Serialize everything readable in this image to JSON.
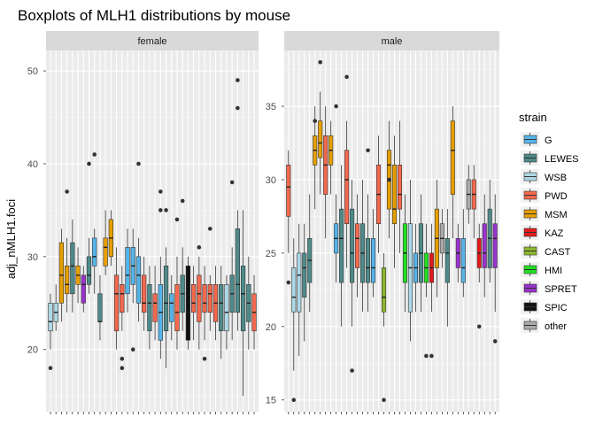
{
  "chart_data": {
    "type": "boxplot",
    "title": "Boxplots of MLH1 distributions by mouse",
    "ylabel": "adj_nMLH1.foci",
    "xlabel": "",
    "grid": true,
    "legend_position": "right",
    "legend": {
      "title": "strain",
      "items": [
        {
          "name": "G",
          "color": "#56B4E9"
        },
        {
          "name": "LEWES",
          "color": "#4E8A89"
        },
        {
          "name": "WSB",
          "color": "#ADD8E6"
        },
        {
          "name": "PWD",
          "color": "#F4694E"
        },
        {
          "name": "MSM",
          "color": "#E69F00"
        },
        {
          "name": "KAZ",
          "color": "#E41A1C"
        },
        {
          "name": "CAST",
          "color": "#8DB72E"
        },
        {
          "name": "HMI",
          "color": "#22E022"
        },
        {
          "name": "SPRET",
          "color": "#9933CC"
        },
        {
          "name": "SPIC",
          "color": "#111111"
        },
        {
          "name": "other",
          "color": "#AAAAAA"
        }
      ]
    },
    "panels": [
      {
        "label": "female",
        "ylim": [
          13.3,
          52.2
        ],
        "yticks": [
          20,
          30,
          40,
          50
        ],
        "boxes": [
          {
            "strain": "WSB",
            "min": 20,
            "q1": 22,
            "median": 23,
            "q3": 25,
            "max": 26,
            "outliers": [
              18
            ]
          },
          {
            "strain": "WSB",
            "min": 22,
            "q1": 23,
            "median": 24,
            "q3": 25,
            "max": 27,
            "outliers": []
          },
          {
            "strain": "MSM",
            "min": 23,
            "q1": 25,
            "median": 28,
            "q3": 31.5,
            "max": 33,
            "outliers": []
          },
          {
            "strain": "MSM",
            "min": 24,
            "q1": 26,
            "median": 27,
            "q3": 29,
            "max": 32,
            "outliers": [
              37
            ]
          },
          {
            "strain": "LEWES",
            "min": 24,
            "q1": 26,
            "median": 29,
            "q3": 31.5,
            "max": 34,
            "outliers": []
          },
          {
            "strain": "MSM",
            "min": 25,
            "q1": 27,
            "median": 28,
            "q3": 29,
            "max": 31,
            "outliers": []
          },
          {
            "strain": "SPRET",
            "min": 24,
            "q1": 25,
            "median": 27,
            "q3": 28,
            "max": 29,
            "outliers": []
          },
          {
            "strain": "LEWES",
            "min": 26,
            "q1": 27,
            "median": 28,
            "q3": 30,
            "max": 32,
            "outliers": [
              40
            ]
          },
          {
            "strain": "G",
            "min": 26,
            "q1": 29,
            "median": 30,
            "q3": 32,
            "max": 33,
            "outliers": [
              41
            ]
          },
          {
            "strain": "LEWES",
            "min": 21,
            "q1": 23,
            "median": 23,
            "q3": 26,
            "max": 28,
            "outliers": []
          },
          {
            "strain": "MSM",
            "min": 28,
            "q1": 29,
            "median": 31,
            "q3": 32,
            "max": 35,
            "outliers": []
          },
          {
            "strain": "MSM",
            "min": 29,
            "q1": 30,
            "median": 32,
            "q3": 34,
            "max": 35,
            "outliers": []
          },
          {
            "strain": "PWD",
            "min": 20,
            "q1": 22,
            "median": 26,
            "q3": 28,
            "max": 31,
            "outliers": []
          },
          {
            "strain": "PWD",
            "min": 22,
            "q1": 24,
            "median": 26,
            "q3": 27,
            "max": 29,
            "outliers": [
              18,
              19
            ]
          },
          {
            "strain": "G",
            "min": 24,
            "q1": 26,
            "median": 28,
            "q3": 31,
            "max": 33,
            "outliers": []
          },
          {
            "strain": "G",
            "min": 25,
            "q1": 27,
            "median": 29,
            "q3": 31,
            "max": 33,
            "outliers": [
              20
            ]
          },
          {
            "strain": "G",
            "min": 23,
            "q1": 25,
            "median": 28,
            "q3": 30,
            "max": 32,
            "outliers": [
              40
            ]
          },
          {
            "strain": "PWD",
            "min": 22,
            "q1": 24,
            "median": 25,
            "q3": 28,
            "max": 30,
            "outliers": []
          },
          {
            "strain": "LEWES",
            "min": 20,
            "q1": 22,
            "median": 25,
            "q3": 27,
            "max": 29,
            "outliers": []
          },
          {
            "strain": "PWD",
            "min": 21,
            "q1": 23,
            "median": 25,
            "q3": 26,
            "max": 29,
            "outliers": []
          },
          {
            "strain": "G",
            "min": 19,
            "q1": 21,
            "median": 24,
            "q3": 27,
            "max": 30,
            "outliers": [
              37,
              35
            ]
          },
          {
            "strain": "LEWES",
            "min": 18,
            "q1": 22,
            "median": 25,
            "q3": 29,
            "max": 31,
            "outliers": [
              35
            ]
          },
          {
            "strain": "G",
            "min": 21,
            "q1": 23,
            "median": 25,
            "q3": 26,
            "max": 28,
            "outliers": []
          },
          {
            "strain": "PWD",
            "min": 20,
            "q1": 22,
            "median": 24,
            "q3": 27,
            "max": 30,
            "outliers": [
              34
            ]
          },
          {
            "strain": "LEWES",
            "min": 22,
            "q1": 24,
            "median": 26,
            "q3": 28,
            "max": 31,
            "outliers": [
              36
            ]
          },
          {
            "strain": "SPIC",
            "min": 20,
            "q1": 21,
            "median": 24,
            "q3": 29,
            "max": 30,
            "outliers": []
          },
          {
            "strain": "PWD",
            "min": 21,
            "q1": 24,
            "median": 25,
            "q3": 27,
            "max": 29,
            "outliers": []
          },
          {
            "strain": "PWD",
            "min": 20,
            "q1": 23,
            "median": 26,
            "q3": 28,
            "max": 30,
            "outliers": [
              31
            ]
          },
          {
            "strain": "PWD",
            "min": 21,
            "q1": 24,
            "median": 25,
            "q3": 27,
            "max": 29,
            "outliers": [
              19
            ]
          },
          {
            "strain": "PWD",
            "min": 22,
            "q1": 24,
            "median": 26,
            "q3": 27,
            "max": 28,
            "outliers": [
              33
            ]
          },
          {
            "strain": "PWD",
            "min": 21,
            "q1": 23,
            "median": 25,
            "q3": 27,
            "max": 29,
            "outliers": []
          },
          {
            "strain": "LEWES",
            "min": 19,
            "q1": 22,
            "median": 25,
            "q3": 27,
            "max": 29,
            "outliers": []
          },
          {
            "strain": "WSB",
            "min": 20,
            "q1": 22,
            "median": 24,
            "q3": 27,
            "max": 28,
            "outliers": []
          },
          {
            "strain": "LEWES",
            "min": 21,
            "q1": 24,
            "median": 26,
            "q3": 28,
            "max": 31,
            "outliers": [
              38
            ]
          },
          {
            "strain": "LEWES",
            "min": 22,
            "q1": 24,
            "median": 27,
            "q3": 33,
            "max": 35,
            "outliers": [
              49,
              46
            ]
          },
          {
            "strain": "LEWES",
            "min": 15,
            "q1": 22,
            "median": 26,
            "q3": 29,
            "max": 35,
            "outliers": []
          },
          {
            "strain": "LEWES",
            "min": 20,
            "q1": 23,
            "median": 25,
            "q3": 27,
            "max": 30,
            "outliers": []
          },
          {
            "strain": "PWD",
            "min": 20,
            "q1": 22,
            "median": 24,
            "q3": 26,
            "max": 28,
            "outliers": []
          }
        ]
      },
      {
        "label": "male",
        "ylim": [
          14.2,
          38.8
        ],
        "yticks": [
          15,
          20,
          25,
          30,
          35
        ],
        "boxes": [
          {
            "strain": "PWD",
            "min": 25,
            "q1": 27.5,
            "median": 29.5,
            "q3": 31,
            "max": 32,
            "outliers": [
              23
            ]
          },
          {
            "strain": "WSB",
            "min": 17,
            "q1": 21,
            "median": 22,
            "q3": 24,
            "max": 26,
            "outliers": [
              15
            ]
          },
          {
            "strain": "WSB",
            "min": 18,
            "q1": 21,
            "median": 23.5,
            "q3": 25,
            "max": 27,
            "outliers": []
          },
          {
            "strain": "LEWES",
            "min": 19,
            "q1": 22,
            "median": 24,
            "q3": 25,
            "max": 27,
            "outliers": []
          },
          {
            "strain": "LEWES",
            "min": 21,
            "q1": 23,
            "median": 24.5,
            "q3": 26,
            "max": 29,
            "outliers": []
          },
          {
            "strain": "MSM",
            "min": 28,
            "q1": 31,
            "median": 32,
            "q3": 33,
            "max": 35,
            "outliers": [
              34
            ]
          },
          {
            "strain": "MSM",
            "min": 29,
            "q1": 31.5,
            "median": 32.5,
            "q3": 34,
            "max": 36,
            "outliers": [
              38
            ]
          },
          {
            "strain": "PWD",
            "min": 26,
            "q1": 29,
            "median": 31,
            "q3": 33,
            "max": 35,
            "outliers": []
          },
          {
            "strain": "MSM",
            "min": 29,
            "q1": 31,
            "median": 32,
            "q3": 33,
            "max": 34,
            "outliers": []
          },
          {
            "strain": "G",
            "min": 23,
            "q1": 25,
            "median": 26,
            "q3": 27,
            "max": 29,
            "outliers": [
              35
            ]
          },
          {
            "strain": "LEWES",
            "min": 20,
            "q1": 23,
            "median": 26,
            "q3": 28,
            "max": 31,
            "outliers": []
          },
          {
            "strain": "PWD",
            "min": 24,
            "q1": 27,
            "median": 30,
            "q3": 32,
            "max": 34,
            "outliers": [
              37
            ]
          },
          {
            "strain": "LEWES",
            "min": 20,
            "q1": 23,
            "median": 25,
            "q3": 28,
            "max": 30,
            "outliers": [
              17
            ]
          },
          {
            "strain": "PWD",
            "min": 22,
            "q1": 24,
            "median": 26,
            "q3": 27,
            "max": 29,
            "outliers": []
          },
          {
            "strain": "LEWES",
            "min": 21,
            "q1": 23,
            "median": 25,
            "q3": 27,
            "max": 30,
            "outliers": []
          },
          {
            "strain": "LEWES",
            "min": 21,
            "q1": 23,
            "median": 24,
            "q3": 26,
            "max": 29,
            "outliers": [
              32
            ]
          },
          {
            "strain": "G",
            "min": 22,
            "q1": 23,
            "median": 24,
            "q3": 26,
            "max": 28,
            "outliers": []
          },
          {
            "strain": "PWD",
            "min": 25,
            "q1": 27,
            "median": 29,
            "q3": 31,
            "max": 33,
            "outliers": []
          },
          {
            "strain": "CAST",
            "min": 20,
            "q1": 21,
            "median": 22,
            "q3": 24,
            "max": 25,
            "outliers": [
              15
            ]
          },
          {
            "strain": "MSM",
            "min": 26,
            "q1": 28,
            "median": 31,
            "q3": 32,
            "max": 34,
            "outliers": [
              30
            ]
          },
          {
            "strain": "MSM",
            "min": 24,
            "q1": 27,
            "median": 28,
            "q3": 31,
            "max": 33,
            "outliers": []
          },
          {
            "strain": "PWD",
            "min": 25,
            "q1": 28,
            "median": 29,
            "q3": 31,
            "max": 34,
            "outliers": []
          },
          {
            "strain": "HMI",
            "min": 21,
            "q1": 23,
            "median": 25,
            "q3": 27,
            "max": 29,
            "outliers": []
          },
          {
            "strain": "WSB",
            "min": 19,
            "q1": 21,
            "median": 24,
            "q3": 27,
            "max": 30,
            "outliers": []
          },
          {
            "strain": "G",
            "min": 21,
            "q1": 23,
            "median": 24,
            "q3": 25,
            "max": 27,
            "outliers": []
          },
          {
            "strain": "LEWES",
            "min": 21,
            "q1": 23,
            "median": 25,
            "q3": 27,
            "max": 29,
            "outliers": []
          },
          {
            "strain": "HMI",
            "min": 22,
            "q1": 23,
            "median": 24,
            "q3": 25,
            "max": 27,
            "outliers": [
              18
            ]
          },
          {
            "strain": "KAZ",
            "min": 21,
            "q1": 23,
            "median": 24,
            "q3": 25,
            "max": 27,
            "outliers": [
              18
            ]
          },
          {
            "strain": "MSM",
            "min": 22,
            "q1": 24,
            "median": 26,
            "q3": 28,
            "max": 30,
            "outliers": []
          },
          {
            "strain": "other",
            "min": 24,
            "q1": 25,
            "median": 26,
            "q3": 27,
            "max": 28,
            "outliers": []
          },
          {
            "strain": "LEWES",
            "min": 20,
            "q1": 23,
            "median": 25,
            "q3": 26,
            "max": 28,
            "outliers": []
          },
          {
            "strain": "MSM",
            "min": 26,
            "q1": 29,
            "median": 32,
            "q3": 34,
            "max": 35,
            "outliers": []
          },
          {
            "strain": "SPRET",
            "min": 23,
            "q1": 24,
            "median": 25,
            "q3": 26,
            "max": 27,
            "outliers": []
          },
          {
            "strain": "G",
            "min": 22,
            "q1": 23,
            "median": 24,
            "q3": 26,
            "max": 28,
            "outliers": []
          },
          {
            "strain": "other",
            "min": 27,
            "q1": 28,
            "median": 29,
            "q3": 30,
            "max": 31,
            "outliers": []
          },
          {
            "strain": "PWD",
            "min": 26,
            "q1": 28,
            "median": 29,
            "q3": 30,
            "max": 31,
            "outliers": []
          },
          {
            "strain": "KAZ",
            "min": 23,
            "q1": 24,
            "median": 25,
            "q3": 26,
            "max": 27,
            "outliers": [
              20
            ]
          },
          {
            "strain": "SPRET",
            "min": 22,
            "q1": 24,
            "median": 25,
            "q3": 27,
            "max": 29,
            "outliers": []
          },
          {
            "strain": "LEWES",
            "min": 23,
            "q1": 24,
            "median": 26,
            "q3": 28,
            "max": 30,
            "outliers": []
          },
          {
            "strain": "SPRET",
            "min": 21,
            "q1": 24,
            "median": 26,
            "q3": 27,
            "max": 29,
            "outliers": [
              19
            ]
          }
        ]
      }
    ]
  }
}
